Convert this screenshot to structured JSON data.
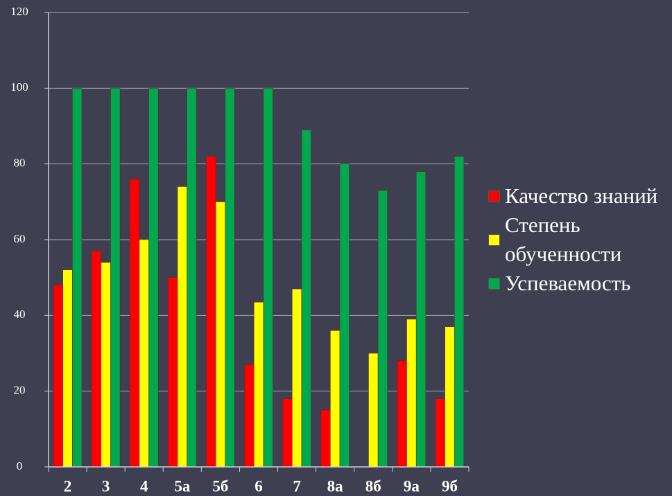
{
  "chart_data": {
    "type": "bar",
    "categories": [
      "2",
      "3",
      "4",
      "5а",
      "5б",
      "6",
      "7",
      "8а",
      "8б",
      "9а",
      "9б"
    ],
    "series": [
      {
        "name": "Качество знаний",
        "color": "#ff0000",
        "values": [
          48,
          57,
          76,
          50,
          82,
          27,
          18,
          15,
          0,
          28,
          18
        ]
      },
      {
        "name": "Степень обученности",
        "color": "#ffff00",
        "values": [
          52,
          54,
          60,
          74,
          70,
          43.5,
          47,
          36,
          30,
          39,
          37
        ]
      },
      {
        "name": "Успеваемость",
        "color": "#00a84f",
        "values": [
          100,
          100,
          100,
          100,
          100,
          100,
          89,
          80,
          73,
          78,
          82
        ]
      }
    ],
    "ylim": [
      0,
      120
    ],
    "yticks": [
      0,
      20,
      40,
      60,
      80,
      100,
      120
    ],
    "grid": true,
    "legend": "right"
  }
}
